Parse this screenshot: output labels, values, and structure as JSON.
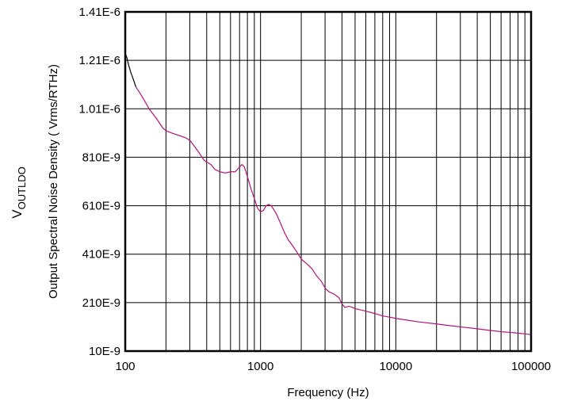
{
  "chart_data": {
    "type": "line",
    "xscale": "log",
    "xlim": [
      100,
      100000
    ],
    "ylim": [
      1e-08,
      1.41e-06
    ],
    "xlabel": "Frequency (Hz)",
    "ylabel": "Output Spectral Noise Density ( Vrms/RTHz)",
    "outer_label": {
      "main": "V",
      "sub": "OUTLDO"
    },
    "x_tick_labels": [
      {
        "value": 100,
        "label": "100"
      },
      {
        "value": 1000,
        "label": "1000"
      },
      {
        "value": 10000,
        "label": "10000"
      },
      {
        "value": 100000,
        "label": "100000"
      }
    ],
    "y_tick_labels": [
      {
        "value": 1e-08,
        "label": "10E-9"
      },
      {
        "value": 2.1e-07,
        "label": "210E-9"
      },
      {
        "value": 4.1e-07,
        "label": "410E-9"
      },
      {
        "value": 6.1e-07,
        "label": "610E-9"
      },
      {
        "value": 8.1e-07,
        "label": "810E-9"
      },
      {
        "value": 1.01e-06,
        "label": "1.01E-6"
      },
      {
        "value": 1.21e-06,
        "label": "1.21E-6"
      },
      {
        "value": 1.41e-06,
        "label": "1.41E-6"
      }
    ],
    "grid": true,
    "legend": false,
    "series": [
      {
        "color": "#000000",
        "x": [
          100,
          103,
          106,
          110,
          115,
          120
        ],
        "y": [
          1.24e-06,
          1.22e-06,
          1.19e-06,
          1.16e-06,
          1.13e-06,
          1.1e-06
        ]
      },
      {
        "color": "#b0157a",
        "x": [
          120,
          130,
          140,
          150,
          170,
          190,
          200,
          220,
          250,
          280,
          300,
          320,
          350,
          380,
          400,
          430,
          460,
          500,
          550,
          600,
          650,
          700,
          730,
          760,
          780,
          800,
          850,
          900,
          950,
          1000,
          1050,
          1100,
          1150,
          1200,
          1300,
          1400,
          1500,
          1600,
          1700,
          1800,
          1900,
          2000,
          2200,
          2400,
          2600,
          2800,
          3000,
          3200,
          3500,
          3800,
          4000,
          4200,
          4500,
          4800,
          5000,
          5500,
          6000,
          7000,
          8000,
          9000,
          10000,
          12000,
          15000,
          20000,
          25000,
          30000,
          40000,
          50000,
          60000,
          70000,
          80000,
          90000,
          100000
        ],
        "y": [
          1.1e-06,
          1.07e-06,
          1.04e-06,
          1.01e-06,
          9.7e-07,
          9.3e-07,
          9.2e-07,
          9.1e-07,
          9e-07,
          8.9e-07,
          8.8e-07,
          8.6e-07,
          8.3e-07,
          8e-07,
          7.9e-07,
          7.8e-07,
          7.6e-07,
          7.5e-07,
          7.45e-07,
          7.5e-07,
          7.5e-07,
          7.7e-07,
          7.8e-07,
          7.7e-07,
          7.5e-07,
          7.3e-07,
          6.8e-07,
          6.4e-07,
          6e-07,
          5.85e-07,
          5.9e-07,
          6.1e-07,
          6.15e-07,
          6.1e-07,
          5.8e-07,
          5.4e-07,
          5e-07,
          4.7e-07,
          4.5e-07,
          4.3e-07,
          4.1e-07,
          3.9e-07,
          3.7e-07,
          3.5e-07,
          3.2e-07,
          3e-07,
          2.7e-07,
          2.55e-07,
          2.45e-07,
          2.3e-07,
          2.05e-07,
          1.9e-07,
          1.95e-07,
          1.9e-07,
          1.85e-07,
          1.8e-07,
          1.75e-07,
          1.65e-07,
          1.55e-07,
          1.5e-07,
          1.45e-07,
          1.38e-07,
          1.3e-07,
          1.22e-07,
          1.15e-07,
          1.1e-07,
          1.02e-07,
          9.5e-08,
          9e-08,
          8.7e-08,
          8.4e-08,
          8.1e-08,
          7.8e-08
        ]
      }
    ]
  }
}
